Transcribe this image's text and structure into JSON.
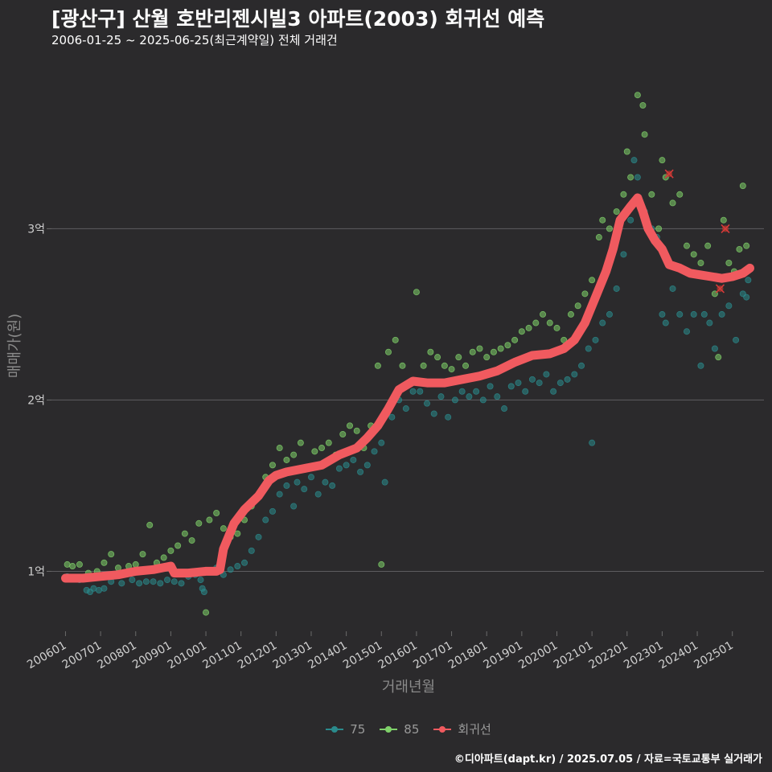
{
  "title": "[광산구] 산월 호반리젠시빌3 아파트(2003) 회귀선 예측",
  "subtitle": "2006-01-25 ~ 2025-06-25(최근계약일) 전체 거래건",
  "footer": "©디아파트(dapt.kr) / 2025.07.05 / 자료=국토교통부 실거래가",
  "chart_data": {
    "type": "scatter",
    "xlabel": "거래년월",
    "ylabel": "매매가(원)",
    "xlim": [
      2005.6,
      2025.9
    ],
    "ylim": [
      0.65,
      3.95
    ],
    "y_unit": "억",
    "y_ticks": [
      {
        "value": 1,
        "label": "1억"
      },
      {
        "value": 2,
        "label": "2억"
      },
      {
        "value": 3,
        "label": "3억"
      }
    ],
    "x_ticks": [
      {
        "value": 2006,
        "label": "200601"
      },
      {
        "value": 2007,
        "label": "200701"
      },
      {
        "value": 2008,
        "label": "200801"
      },
      {
        "value": 2009,
        "label": "200901"
      },
      {
        "value": 2010,
        "label": "201001"
      },
      {
        "value": 2011,
        "label": "201101"
      },
      {
        "value": 2012,
        "label": "201201"
      },
      {
        "value": 2013,
        "label": "201301"
      },
      {
        "value": 2014,
        "label": "201401"
      },
      {
        "value": 2015,
        "label": "201501"
      },
      {
        "value": 2016,
        "label": "201601"
      },
      {
        "value": 2017,
        "label": "201701"
      },
      {
        "value": 2018,
        "label": "201801"
      },
      {
        "value": 2019,
        "label": "201901"
      },
      {
        "value": 2020,
        "label": "202001"
      },
      {
        "value": 2021,
        "label": "202101"
      },
      {
        "value": 2022,
        "label": "202201"
      },
      {
        "value": 2023,
        "label": "202301"
      },
      {
        "value": 2024,
        "label": "202401"
      },
      {
        "value": 2025,
        "label": "202501"
      }
    ],
    "legend": [
      {
        "name": "75",
        "color": "#2a8a8c"
      },
      {
        "name": "85",
        "color": "#7fd16a"
      },
      {
        "name": "회귀선",
        "color": "#f05a5f"
      }
    ],
    "series": [
      {
        "name": "75",
        "color": "#2a8a8c",
        "points": [
          [
            2006.05,
            0.97
          ],
          [
            2006.2,
            0.96
          ],
          [
            2006.4,
            0.95
          ],
          [
            2006.6,
            0.89
          ],
          [
            2006.7,
            0.88
          ],
          [
            2006.8,
            0.9
          ],
          [
            2006.95,
            0.89
          ],
          [
            2007.1,
            0.9
          ],
          [
            2007.3,
            0.94
          ],
          [
            2007.6,
            0.93
          ],
          [
            2007.9,
            0.95
          ],
          [
            2008.1,
            0.93
          ],
          [
            2008.3,
            0.94
          ],
          [
            2008.5,
            0.94
          ],
          [
            2008.7,
            0.93
          ],
          [
            2008.9,
            0.95
          ],
          [
            2009.1,
            0.94
          ],
          [
            2009.3,
            0.93
          ],
          [
            2009.5,
            0.97
          ],
          [
            2009.7,
            0.98
          ],
          [
            2009.85,
            0.95
          ],
          [
            2009.9,
            0.9
          ],
          [
            2009.95,
            0.88
          ],
          [
            2010.1,
            1.0
          ],
          [
            2010.3,
            1.02
          ],
          [
            2010.5,
            0.98
          ],
          [
            2010.7,
            1.01
          ],
          [
            2010.9,
            1.03
          ],
          [
            2011.1,
            1.05
          ],
          [
            2011.3,
            1.12
          ],
          [
            2011.5,
            1.2
          ],
          [
            2011.7,
            1.3
          ],
          [
            2011.9,
            1.35
          ],
          [
            2012.1,
            1.45
          ],
          [
            2012.3,
            1.5
          ],
          [
            2012.5,
            1.38
          ],
          [
            2012.6,
            1.52
          ],
          [
            2012.8,
            1.48
          ],
          [
            2013.0,
            1.55
          ],
          [
            2013.2,
            1.45
          ],
          [
            2013.4,
            1.52
          ],
          [
            2013.6,
            1.5
          ],
          [
            2013.8,
            1.6
          ],
          [
            2014.0,
            1.62
          ],
          [
            2014.2,
            1.65
          ],
          [
            2014.4,
            1.58
          ],
          [
            2014.6,
            1.62
          ],
          [
            2014.8,
            1.7
          ],
          [
            2015.0,
            1.75
          ],
          [
            2015.1,
            1.52
          ],
          [
            2015.3,
            1.9
          ],
          [
            2015.5,
            2.0
          ],
          [
            2015.7,
            1.95
          ],
          [
            2015.9,
            2.05
          ],
          [
            2016.1,
            2.05
          ],
          [
            2016.3,
            1.98
          ],
          [
            2016.5,
            1.92
          ],
          [
            2016.7,
            2.02
          ],
          [
            2016.9,
            1.9
          ],
          [
            2017.1,
            2.0
          ],
          [
            2017.3,
            2.05
          ],
          [
            2017.5,
            2.02
          ],
          [
            2017.7,
            2.05
          ],
          [
            2017.9,
            2.0
          ],
          [
            2018.1,
            2.08
          ],
          [
            2018.3,
            2.02
          ],
          [
            2018.5,
            1.95
          ],
          [
            2018.7,
            2.08
          ],
          [
            2018.9,
            2.1
          ],
          [
            2019.1,
            2.05
          ],
          [
            2019.3,
            2.12
          ],
          [
            2019.5,
            2.1
          ],
          [
            2019.7,
            2.15
          ],
          [
            2019.9,
            2.05
          ],
          [
            2020.1,
            2.1
          ],
          [
            2020.3,
            2.12
          ],
          [
            2020.5,
            2.15
          ],
          [
            2020.7,
            2.2
          ],
          [
            2020.9,
            2.3
          ],
          [
            2021.0,
            1.75
          ],
          [
            2021.1,
            2.35
          ],
          [
            2021.3,
            2.45
          ],
          [
            2021.5,
            2.5
          ],
          [
            2021.7,
            2.65
          ],
          [
            2021.9,
            2.85
          ],
          [
            2022.1,
            3.05
          ],
          [
            2022.2,
            3.4
          ],
          [
            2022.3,
            3.3
          ],
          [
            2022.5,
            3.1
          ],
          [
            2022.7,
            3.0
          ],
          [
            2022.85,
            2.95
          ],
          [
            2023.0,
            2.5
          ],
          [
            2023.1,
            2.45
          ],
          [
            2023.3,
            2.65
          ],
          [
            2023.5,
            2.5
          ],
          [
            2023.7,
            2.4
          ],
          [
            2023.9,
            2.5
          ],
          [
            2024.1,
            2.2
          ],
          [
            2024.2,
            2.5
          ],
          [
            2024.35,
            2.45
          ],
          [
            2024.5,
            2.3
          ],
          [
            2024.7,
            2.5
          ],
          [
            2024.9,
            2.55
          ],
          [
            2025.1,
            2.35
          ],
          [
            2025.3,
            2.62
          ],
          [
            2025.4,
            2.6
          ],
          [
            2025.45,
            2.7
          ]
        ]
      },
      {
        "name": "85",
        "color": "#7fd16a",
        "points": [
          [
            2006.05,
            1.04
          ],
          [
            2006.2,
            1.03
          ],
          [
            2006.4,
            1.04
          ],
          [
            2006.65,
            0.99
          ],
          [
            2006.9,
            1.0
          ],
          [
            2007.1,
            1.05
          ],
          [
            2007.3,
            1.1
          ],
          [
            2007.5,
            1.02
          ],
          [
            2007.8,
            1.03
          ],
          [
            2008.0,
            1.04
          ],
          [
            2008.2,
            1.1
          ],
          [
            2008.4,
            1.27
          ],
          [
            2008.6,
            1.05
          ],
          [
            2008.8,
            1.08
          ],
          [
            2009.0,
            1.12
          ],
          [
            2009.2,
            1.15
          ],
          [
            2009.4,
            1.22
          ],
          [
            2009.6,
            1.18
          ],
          [
            2009.8,
            1.28
          ],
          [
            2010.0,
            0.76
          ],
          [
            2010.1,
            1.3
          ],
          [
            2010.3,
            1.34
          ],
          [
            2010.5,
            1.25
          ],
          [
            2010.7,
            1.2
          ],
          [
            2010.9,
            1.22
          ],
          [
            2011.1,
            1.3
          ],
          [
            2011.3,
            1.38
          ],
          [
            2011.5,
            1.45
          ],
          [
            2011.7,
            1.55
          ],
          [
            2011.9,
            1.62
          ],
          [
            2012.1,
            1.72
          ],
          [
            2012.3,
            1.65
          ],
          [
            2012.5,
            1.68
          ],
          [
            2012.7,
            1.75
          ],
          [
            2012.9,
            1.6
          ],
          [
            2013.1,
            1.7
          ],
          [
            2013.3,
            1.72
          ],
          [
            2013.5,
            1.75
          ],
          [
            2013.7,
            1.68
          ],
          [
            2013.9,
            1.8
          ],
          [
            2014.1,
            1.85
          ],
          [
            2014.3,
            1.82
          ],
          [
            2014.5,
            1.72
          ],
          [
            2014.7,
            1.85
          ],
          [
            2014.9,
            2.2
          ],
          [
            2015.0,
            1.04
          ],
          [
            2015.2,
            2.28
          ],
          [
            2015.4,
            2.35
          ],
          [
            2015.6,
            2.2
          ],
          [
            2015.8,
            2.1
          ],
          [
            2016.0,
            2.63
          ],
          [
            2016.2,
            2.2
          ],
          [
            2016.4,
            2.28
          ],
          [
            2016.6,
            2.25
          ],
          [
            2016.8,
            2.2
          ],
          [
            2017.0,
            2.18
          ],
          [
            2017.2,
            2.25
          ],
          [
            2017.4,
            2.2
          ],
          [
            2017.6,
            2.28
          ],
          [
            2017.8,
            2.3
          ],
          [
            2018.0,
            2.25
          ],
          [
            2018.2,
            2.28
          ],
          [
            2018.4,
            2.3
          ],
          [
            2018.6,
            2.32
          ],
          [
            2018.8,
            2.35
          ],
          [
            2019.0,
            2.4
          ],
          [
            2019.2,
            2.42
          ],
          [
            2019.4,
            2.45
          ],
          [
            2019.6,
            2.5
          ],
          [
            2019.8,
            2.45
          ],
          [
            2020.0,
            2.42
          ],
          [
            2020.2,
            2.35
          ],
          [
            2020.4,
            2.5
          ],
          [
            2020.6,
            2.55
          ],
          [
            2020.8,
            2.62
          ],
          [
            2021.0,
            2.7
          ],
          [
            2021.2,
            2.95
          ],
          [
            2021.3,
            3.05
          ],
          [
            2021.5,
            3.0
          ],
          [
            2021.7,
            3.1
          ],
          [
            2021.9,
            3.2
          ],
          [
            2022.0,
            3.45
          ],
          [
            2022.1,
            3.3
          ],
          [
            2022.3,
            3.78
          ],
          [
            2022.45,
            3.72
          ],
          [
            2022.5,
            3.55
          ],
          [
            2022.7,
            3.2
          ],
          [
            2022.9,
            3.0
          ],
          [
            2023.0,
            3.4
          ],
          [
            2023.1,
            3.3
          ],
          [
            2023.3,
            3.15
          ],
          [
            2023.5,
            3.2
          ],
          [
            2023.7,
            2.9
          ],
          [
            2023.9,
            2.85
          ],
          [
            2024.1,
            2.8
          ],
          [
            2024.3,
            2.9
          ],
          [
            2024.5,
            2.62
          ],
          [
            2024.6,
            2.25
          ],
          [
            2024.75,
            3.05
          ],
          [
            2024.9,
            2.8
          ],
          [
            2025.05,
            2.75
          ],
          [
            2025.2,
            2.88
          ],
          [
            2025.3,
            3.25
          ],
          [
            2025.4,
            2.9
          ]
        ]
      }
    ],
    "regression": {
      "name": "회귀선",
      "color": "#f05a5f",
      "points": [
        [
          2006.0,
          0.96
        ],
        [
          2006.5,
          0.96
        ],
        [
          2007.0,
          0.97
        ],
        [
          2007.5,
          0.98
        ],
        [
          2008.0,
          1.0
        ],
        [
          2008.5,
          1.01
        ],
        [
          2009.0,
          1.03
        ],
        [
          2009.1,
          0.99
        ],
        [
          2009.5,
          0.99
        ],
        [
          2010.0,
          1.0
        ],
        [
          2010.3,
          1.0
        ],
        [
          2010.4,
          1.01
        ],
        [
          2010.5,
          1.13
        ],
        [
          2010.8,
          1.28
        ],
        [
          2011.1,
          1.36
        ],
        [
          2011.5,
          1.44
        ],
        [
          2011.8,
          1.53
        ],
        [
          2012.0,
          1.56
        ],
        [
          2012.3,
          1.58
        ],
        [
          2012.8,
          1.6
        ],
        [
          2013.3,
          1.62
        ],
        [
          2013.8,
          1.68
        ],
        [
          2014.3,
          1.72
        ],
        [
          2014.6,
          1.78
        ],
        [
          2014.9,
          1.85
        ],
        [
          2015.2,
          1.95
        ],
        [
          2015.5,
          2.06
        ],
        [
          2015.9,
          2.11
        ],
        [
          2016.3,
          2.1
        ],
        [
          2016.8,
          2.1
        ],
        [
          2017.3,
          2.12
        ],
        [
          2017.8,
          2.14
        ],
        [
          2018.3,
          2.17
        ],
        [
          2018.8,
          2.22
        ],
        [
          2019.3,
          2.26
        ],
        [
          2019.8,
          2.27
        ],
        [
          2020.2,
          2.3
        ],
        [
          2020.5,
          2.35
        ],
        [
          2020.8,
          2.45
        ],
        [
          2021.1,
          2.6
        ],
        [
          2021.4,
          2.75
        ],
        [
          2021.6,
          2.88
        ],
        [
          2021.8,
          3.05
        ],
        [
          2022.1,
          3.13
        ],
        [
          2022.3,
          3.18
        ],
        [
          2022.45,
          3.1
        ],
        [
          2022.6,
          3.0
        ],
        [
          2022.8,
          2.93
        ],
        [
          2023.0,
          2.88
        ],
        [
          2023.2,
          2.79
        ],
        [
          2023.5,
          2.77
        ],
        [
          2023.8,
          2.74
        ],
        [
          2024.1,
          2.73
        ],
        [
          2024.4,
          2.72
        ],
        [
          2024.7,
          2.71
        ],
        [
          2025.0,
          2.72
        ],
        [
          2025.3,
          2.74
        ],
        [
          2025.5,
          2.77
        ]
      ]
    },
    "highlights": [
      [
        2023.2,
        3.32
      ],
      [
        2024.65,
        2.65
      ],
      [
        2024.8,
        3.0
      ]
    ]
  }
}
